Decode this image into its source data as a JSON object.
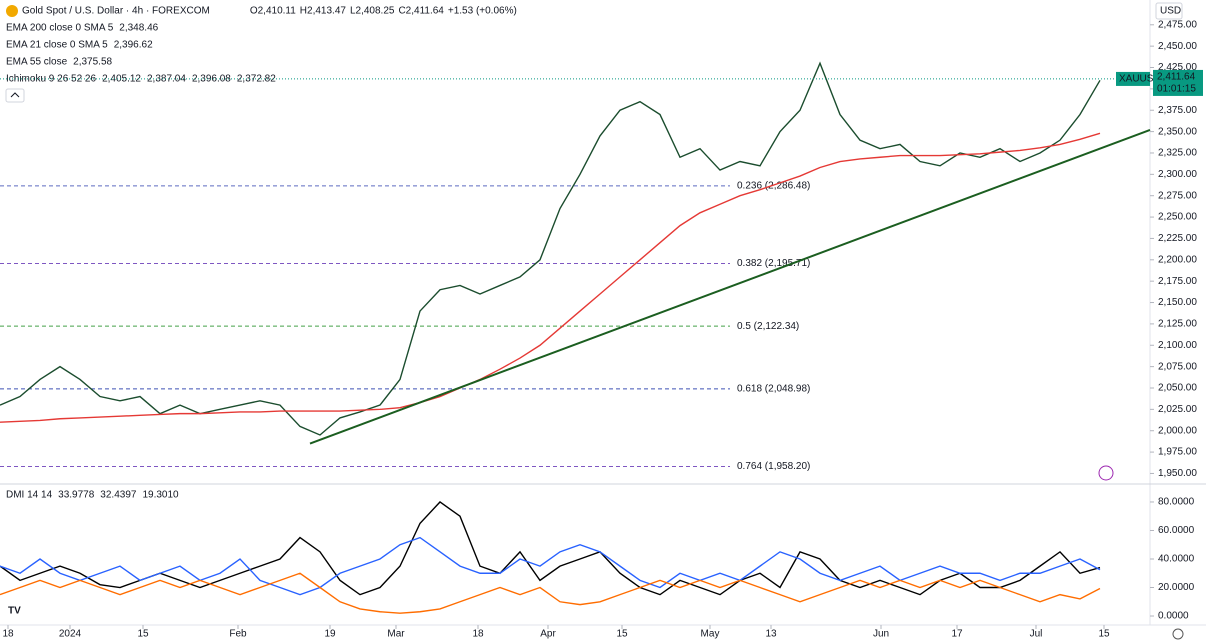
{
  "header": {
    "title": "Gold Spot / U.S. Dollar · 4h · FOREXCOM",
    "ohlc": [
      {
        "text": "O2,410.11",
        "color": "#089981"
      },
      {
        "text": "H2,413.47",
        "color": "#089981"
      },
      {
        "text": "L2,408.25",
        "color": "#089981"
      },
      {
        "text": "C2,411.64",
        "color": "#089981"
      },
      {
        "text": "+1.53 (+0.06%)",
        "color": "#089981"
      }
    ],
    "indicators": [
      [
        {
          "text": "EMA 200 close 0 SMA 5",
          "color": "#131722"
        },
        {
          "text": "2,348.46",
          "color": "#e53935"
        }
      ],
      [
        {
          "text": "EMA 21 close 0 SMA 5",
          "color": "#131722"
        },
        {
          "text": "2,396.62",
          "color": "#00897b"
        }
      ],
      [
        {
          "text": "EMA 55 close",
          "color": "#131722"
        },
        {
          "text": "2,375.58",
          "color": "#1e53e5"
        }
      ],
      [
        {
          "text": "Ichimoku 9 26 52 26",
          "color": "#131722"
        },
        {
          "text": "2,405.12",
          "color": "#2962ff"
        },
        {
          "text": "2,387.04",
          "color": "#b71c1c"
        },
        {
          "text": "2,396.08",
          "color": "#81c784"
        },
        {
          "text": "2,372.82",
          "color": "#f77c80"
        }
      ]
    ],
    "currency": "USD"
  },
  "chart_data": [
    {
      "type": "line",
      "panel": "price",
      "x": [
        0,
        1,
        2,
        3,
        4,
        5,
        6,
        7,
        8,
        9,
        10,
        11,
        12,
        13,
        14,
        15,
        16,
        17,
        18,
        19,
        20,
        21,
        22,
        23,
        24,
        25,
        26,
        27,
        28,
        29,
        30,
        31,
        32,
        33,
        34,
        35,
        36,
        37,
        38,
        39,
        40,
        41,
        42,
        43,
        44,
        45,
        46,
        47,
        48,
        49,
        50,
        51,
        52,
        53,
        54,
        55
      ],
      "series": [
        {
          "name": "Close",
          "color": "#1b4d2e",
          "values": [
            2030,
            2040,
            2060,
            2075,
            2060,
            2040,
            2035,
            2040,
            2020,
            2030,
            2020,
            2025,
            2030,
            2035,
            2030,
            2005,
            1995,
            2015,
            2022,
            2030,
            2060,
            2140,
            2165,
            2170,
            2160,
            2170,
            2180,
            2200,
            2260,
            2300,
            2345,
            2375,
            2385,
            2370,
            2320,
            2330,
            2305,
            2315,
            2310,
            2350,
            2375,
            2430,
            2370,
            2340,
            2330,
            2335,
            2315,
            2310,
            2325,
            2320,
            2330,
            2315,
            2325,
            2340,
            2370,
            2410
          ]
        },
        {
          "name": "EMA 200",
          "color": "#e53935",
          "values": [
            2010,
            2011,
            2012,
            2014,
            2015,
            2016,
            2017,
            2018,
            2019,
            2020,
            2020,
            2021,
            2022,
            2022,
            2023,
            2023,
            2023,
            2023,
            2024,
            2025,
            2027,
            2033,
            2040,
            2050,
            2060,
            2072,
            2085,
            2100,
            2120,
            2140,
            2160,
            2180,
            2200,
            2220,
            2240,
            2255,
            2265,
            2275,
            2282,
            2290,
            2298,
            2308,
            2315,
            2318,
            2320,
            2322,
            2322,
            2322,
            2323,
            2324,
            2326,
            2328,
            2331,
            2335,
            2341,
            2348
          ]
        }
      ],
      "xlim": [
        0,
        57.5
      ],
      "ylim": [
        1940,
        2504
      ],
      "yticks": [
        {
          "value": 1950,
          "label": "1,950.00"
        },
        {
          "value": 1975,
          "label": "1,975.00"
        },
        {
          "value": 2000,
          "label": "2,000.00"
        },
        {
          "value": 2025,
          "label": "2,025.00"
        },
        {
          "value": 2050,
          "label": "2,050.00"
        },
        {
          "value": 2075,
          "label": "2,075.00"
        },
        {
          "value": 2100,
          "label": "2,100.00"
        },
        {
          "value": 2125,
          "label": "2,125.00"
        },
        {
          "value": 2150,
          "label": "2,150.00"
        },
        {
          "value": 2175,
          "label": "2,175.00"
        },
        {
          "value": 2200,
          "label": "2,200.00"
        },
        {
          "value": 2225,
          "label": "2,225.00"
        },
        {
          "value": 2250,
          "label": "2,250.00"
        },
        {
          "value": 2275,
          "label": "2,275.00"
        },
        {
          "value": 2300,
          "label": "2,300.00"
        },
        {
          "value": 2325,
          "label": "2,325.00"
        },
        {
          "value": 2350,
          "label": "2,350.00"
        },
        {
          "value": 2375,
          "label": "2,375.00"
        },
        {
          "value": 2400,
          "label": "2,400.00"
        },
        {
          "value": 2425,
          "label": "2,425.00"
        },
        {
          "value": 2450,
          "label": "2,450.00"
        },
        {
          "value": 2475,
          "label": "2,475.00"
        }
      ],
      "xticks": [
        {
          "value": 0.4,
          "label": "18"
        },
        {
          "value": 3.5,
          "label": "2024"
        },
        {
          "value": 7.15,
          "label": "15"
        },
        {
          "value": 11.9,
          "label": "Feb"
        },
        {
          "value": 16.5,
          "label": "19"
        },
        {
          "value": 19.8,
          "label": "Mar"
        },
        {
          "value": 23.9,
          "label": "18"
        },
        {
          "value": 27.4,
          "label": "Apr"
        },
        {
          "value": 31.1,
          "label": "15"
        },
        {
          "value": 35.5,
          "label": "May"
        },
        {
          "value": 38.55,
          "label": "13"
        },
        {
          "value": 44.05,
          "label": "Jun"
        },
        {
          "value": 47.85,
          "label": "17"
        },
        {
          "value": 51.8,
          "label": "Jul"
        },
        {
          "value": 55.2,
          "label": "15"
        }
      ],
      "fib_levels": [
        {
          "value": 2286.48,
          "label": "0.236 (2,286.48)",
          "color": "#5c6bc0"
        },
        {
          "value": 2195.71,
          "label": "0.382 (2,195.71)",
          "color": "#7e57c2"
        },
        {
          "value": 2122.34,
          "label": "0.5 (2,122.34)",
          "color": "#43a047"
        },
        {
          "value": 2048.98,
          "label": "0.618 (2,048.98)",
          "color": "#3f51b5"
        },
        {
          "value": 1958.2,
          "label": "0.764 (1,958.20)",
          "color": "#7e57c2"
        }
      ],
      "trendline": {
        "color": "#1b5e20",
        "x": [
          15.5,
          57.5
        ],
        "values": [
          1985,
          2352
        ]
      },
      "last_price": {
        "symbol": "XAUUSD",
        "value": 2411.64,
        "label": "2,411.64",
        "countdown": "01:01:15",
        "color": "#089981"
      }
    },
    {
      "type": "line",
      "panel": "dmi",
      "x": [
        0,
        1,
        2,
        3,
        4,
        5,
        6,
        7,
        8,
        9,
        10,
        11,
        12,
        13,
        14,
        15,
        16,
        17,
        18,
        19,
        20,
        21,
        22,
        23,
        24,
        25,
        26,
        27,
        28,
        29,
        30,
        31,
        32,
        33,
        34,
        35,
        36,
        37,
        38,
        39,
        40,
        41,
        42,
        43,
        44,
        45,
        46,
        47,
        48,
        49,
        50,
        51,
        52,
        53,
        54,
        55
      ],
      "series": [
        {
          "name": "ADX",
          "color": "#000000",
          "values": [
            35,
            25,
            30,
            35,
            30,
            22,
            20,
            25,
            30,
            25,
            20,
            25,
            30,
            35,
            40,
            55,
            45,
            25,
            15,
            20,
            35,
            65,
            80,
            70,
            35,
            30,
            45,
            25,
            35,
            40,
            45,
            30,
            20,
            15,
            25,
            20,
            15,
            25,
            30,
            20,
            45,
            40,
            25,
            20,
            25,
            20,
            15,
            25,
            30,
            20,
            20,
            25,
            35,
            45,
            30,
            33.9778
          ]
        },
        {
          "name": "+DI",
          "color": "#2962ff",
          "values": [
            35,
            30,
            40,
            30,
            25,
            30,
            35,
            25,
            30,
            35,
            25,
            30,
            40,
            25,
            20,
            15,
            20,
            30,
            35,
            40,
            50,
            55,
            45,
            35,
            30,
            30,
            40,
            35,
            45,
            50,
            45,
            35,
            25,
            20,
            30,
            25,
            30,
            25,
            35,
            45,
            40,
            30,
            25,
            30,
            35,
            25,
            30,
            35,
            30,
            30,
            25,
            30,
            30,
            35,
            40,
            32.4397
          ]
        },
        {
          "name": "-DI",
          "color": "#ff6d00",
          "values": [
            15,
            20,
            25,
            20,
            25,
            20,
            15,
            20,
            25,
            20,
            25,
            20,
            15,
            20,
            25,
            30,
            20,
            10,
            5,
            3,
            2,
            3,
            5,
            10,
            15,
            20,
            15,
            20,
            10,
            8,
            10,
            15,
            20,
            25,
            20,
            25,
            20,
            25,
            20,
            15,
            10,
            15,
            20,
            25,
            20,
            25,
            20,
            25,
            20,
            25,
            20,
            15,
            10,
            15,
            12,
            19.301
          ]
        }
      ],
      "legend": [
        {
          "text": "DMI 14 14",
          "color": "#131722"
        },
        {
          "text": "33.9778",
          "color": "#000000"
        },
        {
          "text": "32.4397",
          "color": "#2962ff"
        },
        {
          "text": "19.3010",
          "color": "#ff6d00"
        }
      ],
      "xlim": [
        0,
        57.5
      ],
      "ylim": [
        -6.3,
        90.5
      ],
      "yticks": [
        {
          "value": 0,
          "label": "0.0000"
        },
        {
          "value": 20,
          "label": "20.0000"
        },
        {
          "value": 40,
          "label": "40.0000"
        },
        {
          "value": 60,
          "label": "60.0000"
        },
        {
          "value": 80,
          "label": "80.0000"
        }
      ]
    }
  ]
}
